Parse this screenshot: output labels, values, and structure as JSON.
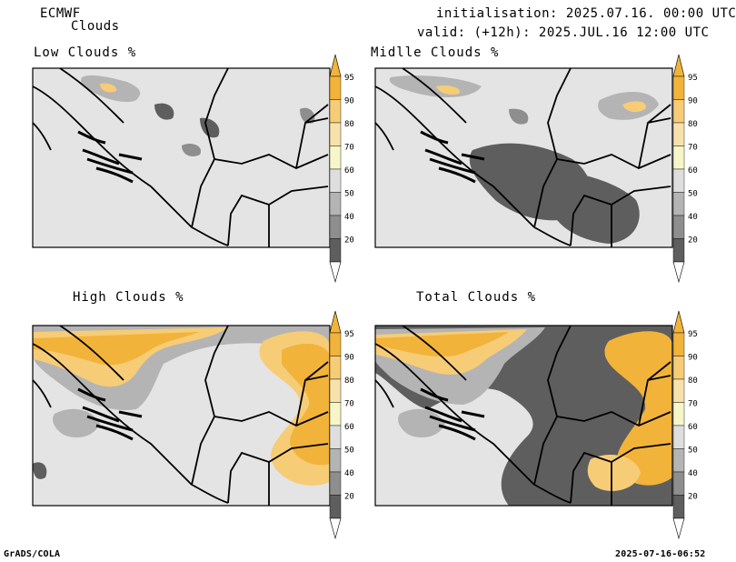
{
  "header": {
    "model": "ECMWF",
    "product": "Clouds",
    "init": "initialisation: 2025.07.16. 00:00 UTC",
    "valid": "valid: (+12h): 2025.JUL.16 12:00 UTC"
  },
  "panels": [
    {
      "title": "Low Clouds %"
    },
    {
      "title": "Midlle Clouds %"
    },
    {
      "title": "High Clouds %"
    },
    {
      "title": "Total Clouds %"
    }
  ],
  "colorbar": {
    "levels": [
      "95",
      "90",
      "80",
      "70",
      "60",
      "50",
      "40",
      "20"
    ],
    "colors": [
      "#f2b33a",
      "#f6cc76",
      "#f8e2ac",
      "#f6f6c8",
      "#dedede",
      "#b4b4b4",
      "#8e8e8e",
      "#5e5e5e"
    ]
  },
  "footer": {
    "left": "GrADS/COLA",
    "right": "2025-07-16-06:52"
  }
}
